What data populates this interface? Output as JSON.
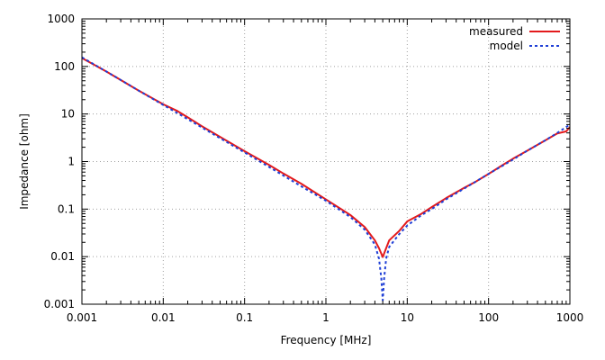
{
  "chart_data": {
    "type": "line",
    "xlabel": "Frequency [MHz]",
    "ylabel": "Impedance [ohm]",
    "xscale": "log",
    "yscale": "log",
    "xlim": [
      0.001,
      1000
    ],
    "ylim": [
      0.001,
      1000
    ],
    "grid": true,
    "legend_position": "top-right",
    "x_ticks": [
      {
        "value": 0.001,
        "label": "0.001"
      },
      {
        "value": 0.01,
        "label": "0.01"
      },
      {
        "value": 0.1,
        "label": "0.1"
      },
      {
        "value": 1,
        "label": "1"
      },
      {
        "value": 10,
        "label": "10"
      },
      {
        "value": 100,
        "label": "100"
      },
      {
        "value": 1000,
        "label": "1000"
      }
    ],
    "y_ticks": [
      {
        "value": 0.001,
        "label": "0.001"
      },
      {
        "value": 0.01,
        "label": "0.01"
      },
      {
        "value": 0.1,
        "label": "0.1"
      },
      {
        "value": 1,
        "label": "1"
      },
      {
        "value": 10,
        "label": "10"
      },
      {
        "value": 100,
        "label": "100"
      },
      {
        "value": 1000,
        "label": "1000"
      }
    ],
    "series": [
      {
        "name": "measured",
        "color": "#e31a1c",
        "style": "solid",
        "points": [
          [
            0.001,
            150
          ],
          [
            0.002,
            78
          ],
          [
            0.005,
            31
          ],
          [
            0.01,
            16
          ],
          [
            0.015,
            11.5
          ],
          [
            0.02,
            8.5
          ],
          [
            0.03,
            5.5
          ],
          [
            0.05,
            3.3
          ],
          [
            0.1,
            1.65
          ],
          [
            0.2,
            0.85
          ],
          [
            0.3,
            0.56
          ],
          [
            0.5,
            0.34
          ],
          [
            1,
            0.16
          ],
          [
            2,
            0.075
          ],
          [
            3,
            0.042
          ],
          [
            4,
            0.022
          ],
          [
            4.5,
            0.015
          ],
          [
            5,
            0.0098
          ],
          [
            5.5,
            0.015
          ],
          [
            6,
            0.022
          ],
          [
            8,
            0.035
          ],
          [
            10,
            0.055
          ],
          [
            15,
            0.08
          ],
          [
            20,
            0.11
          ],
          [
            30,
            0.17
          ],
          [
            50,
            0.28
          ],
          [
            70,
            0.38
          ],
          [
            100,
            0.55
          ],
          [
            150,
            0.85
          ],
          [
            200,
            1.15
          ],
          [
            300,
            1.7
          ],
          [
            500,
            2.8
          ],
          [
            700,
            3.9
          ],
          [
            900,
            4.3
          ],
          [
            1000,
            5.3
          ]
        ]
      },
      {
        "name": "model",
        "color": "#1f3fd6",
        "style": "dashed",
        "points": [
          [
            0.001,
            155
          ],
          [
            0.002,
            78
          ],
          [
            0.005,
            31
          ],
          [
            0.01,
            15.5
          ],
          [
            0.02,
            7.8
          ],
          [
            0.05,
            3.1
          ],
          [
            0.1,
            1.55
          ],
          [
            0.2,
            0.77
          ],
          [
            0.5,
            0.3
          ],
          [
            1,
            0.15
          ],
          [
            2,
            0.068
          ],
          [
            3,
            0.037
          ],
          [
            4,
            0.018
          ],
          [
            4.5,
            0.009
          ],
          [
            4.8,
            0.0035
          ],
          [
            5,
            0.0012
          ],
          [
            5.2,
            0.0035
          ],
          [
            5.5,
            0.009
          ],
          [
            6,
            0.016
          ],
          [
            8,
            0.03
          ],
          [
            10,
            0.045
          ],
          [
            15,
            0.075
          ],
          [
            20,
            0.1
          ],
          [
            30,
            0.16
          ],
          [
            50,
            0.27
          ],
          [
            100,
            0.55
          ],
          [
            200,
            1.1
          ],
          [
            300,
            1.7
          ],
          [
            500,
            2.8
          ],
          [
            700,
            4
          ],
          [
            1000,
            6
          ]
        ]
      }
    ]
  }
}
